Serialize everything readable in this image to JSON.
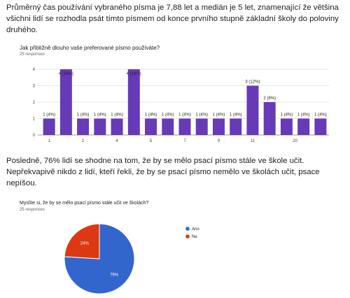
{
  "paragraphs": {
    "p1": "Průměrný čas používání vybraného písma je 7,88 let a medián je 5 let, znamenající že většina všichni lidí se rozhodla psát tímto písmem od konce prvního stupně základní školy do poloviny druhého.",
    "p2": "Posledně, 76% lidí se shodne na tom, že by se mělo psací písmo stále ve škole učit. Nepřekvapivě nikdo z lidí, kteří řekli, že by se psací písmo nemělo ve školách učit, psace nepíšou."
  },
  "chart_data": [
    {
      "type": "bar",
      "title": "Jak přibližně dlouho vaše preferované písmo používáte?",
      "subtitle": "25 responses",
      "bar_color": "#673ab7",
      "ylim": [
        0,
        4
      ],
      "yticks": [
        "0",
        "1",
        "2",
        "3",
        "4"
      ],
      "xtick_labels": [
        "1",
        "2",
        "4",
        "5",
        "7",
        "9",
        "11",
        "20"
      ],
      "xtick_positions": [
        1,
        3,
        5,
        7,
        9,
        11,
        13,
        15.5
      ],
      "values": [
        1,
        4,
        1,
        1,
        1,
        4,
        1,
        1,
        1,
        1,
        1,
        1,
        3,
        2,
        1,
        1,
        1
      ],
      "labels": [
        "1 (4%)",
        "4 (16%)",
        "1 (4%)",
        "1 (4%)",
        "1 (4%)",
        "4 (16%)",
        "1 (4%)",
        "1 (4%)",
        "1 (4%)",
        "1 (4%)",
        "1 (4%)",
        "1 (4%)",
        "3 (12%)",
        "2 (8%)",
        "1 (4%)",
        "1 (4%)",
        "1 (4%)"
      ]
    },
    {
      "type": "pie",
      "title": "Myslíte si, že by se mělo psací písmo stále učit ve školách?",
      "subtitle": "25 responses",
      "slices": [
        {
          "label": "Ano",
          "value": 76,
          "text": "76%",
          "color": "#3366cc"
        },
        {
          "label": "Ne",
          "value": 24,
          "text": "24%",
          "color": "#dc3912"
        }
      ]
    }
  ]
}
